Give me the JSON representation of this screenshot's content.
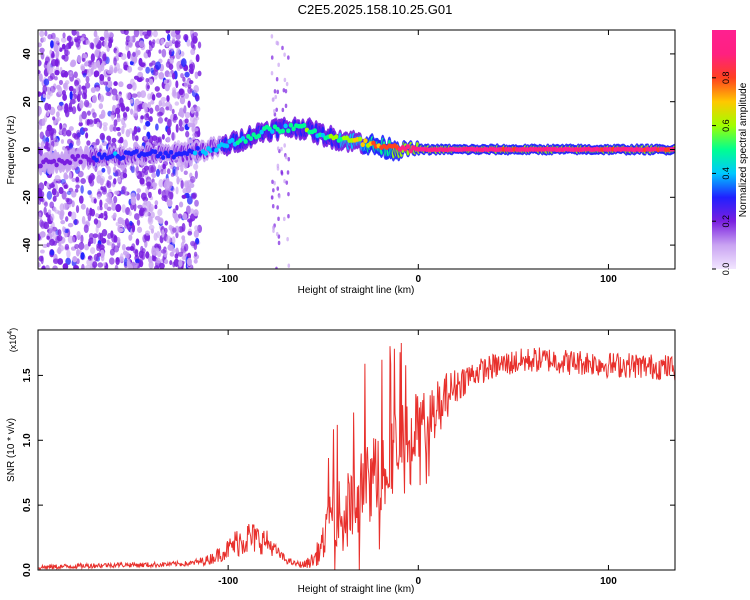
{
  "page": {
    "title": "C2E5.2025.158.10.25.G01"
  },
  "colors": {
    "snr_line": "#e8302c",
    "spectrogram_background": "#ffffff",
    "ridge": "#e62020"
  },
  "colorbar": {
    "label": "Normalized spectral amplitude",
    "ticks": [
      "0.0",
      "0.2",
      "0.4",
      "0.6",
      "0.8"
    ],
    "tick_values": [
      0.0,
      0.2,
      0.4,
      0.6,
      0.8
    ],
    "range": [
      0.0,
      1.0
    ],
    "stops": [
      "#f2e6ff",
      "#c9a3f2",
      "#7a1fe0",
      "#2020ff",
      "#00c8ff",
      "#00ff90",
      "#a0ff00",
      "#ffc800",
      "#ff4020",
      "#ff2080",
      "#ff2090"
    ]
  },
  "chart_data": [
    {
      "type": "heatmap",
      "id": "spectrogram",
      "title": "C2E5.2025.158.10.25.G01",
      "xlabel": "Height of straight line (km)",
      "ylabel": "Frequency (Hz)",
      "xlim": [
        -200,
        135
      ],
      "ylim": [
        -50,
        50
      ],
      "x_ticks": [
        -100,
        0,
        100
      ],
      "x_tick_labels": [
        "-100",
        "0",
        "100"
      ],
      "y_ticks": [
        -40,
        -20,
        0,
        20,
        40
      ],
      "y_tick_labels": [
        "-40",
        "-20",
        "0",
        "20",
        "40"
      ],
      "ridge_x": [
        -200,
        -190,
        -180,
        -170,
        -160,
        -150,
        -140,
        -130,
        -120,
        -110,
        -100,
        -90,
        -80,
        -70,
        -60,
        -50,
        -40,
        -30,
        -20,
        -10,
        0,
        20,
        40,
        60,
        80,
        100,
        120,
        135
      ],
      "ridge_freq": [
        -6,
        -5,
        -4,
        -3,
        -3,
        -2,
        -2,
        -2,
        -1,
        0,
        2,
        5,
        8,
        9,
        9,
        6,
        4,
        3,
        1,
        0,
        0,
        0,
        0,
        0,
        0,
        0,
        0,
        0
      ],
      "ridge_amplitude": [
        0.25,
        0.22,
        0.2,
        0.28,
        0.35,
        0.3,
        0.3,
        0.3,
        0.32,
        0.38,
        0.45,
        0.5,
        0.52,
        0.5,
        0.55,
        0.5,
        0.6,
        0.7,
        0.85,
        0.95,
        0.98,
        0.99,
        0.99,
        0.99,
        0.99,
        0.99,
        0.99,
        0.95
      ],
      "noise_region_x": [
        -200,
        -115
      ],
      "noise_amplitude": 0.22
    },
    {
      "type": "line",
      "id": "snr",
      "xlabel": "Height of straight line (km)",
      "ylabel": "SNR (10 * v/v)",
      "y_multiplier_base": "(x10",
      "y_multiplier_exponent": "4",
      "y_multiplier_close": ")",
      "xlim": [
        -200,
        135
      ],
      "ylim": [
        0.0,
        1.85
      ],
      "x_ticks": [
        -100,
        0,
        100
      ],
      "x_tick_labels": [
        "-100",
        "0",
        "100"
      ],
      "y_ticks": [
        0.0,
        0.5,
        1.0,
        1.5
      ],
      "y_tick_labels": [
        "0.0",
        "0.5",
        "1.0",
        "1.5"
      ],
      "series": [
        {
          "name": "SNR",
          "x": [
            -200,
            -180,
            -160,
            -140,
            -120,
            -110,
            -100,
            -95,
            -90,
            -85,
            -80,
            -75,
            -70,
            -65,
            -60,
            -55,
            -50,
            -45,
            -40,
            -35,
            -30,
            -25,
            -20,
            -15,
            -10,
            -5,
            0,
            5,
            10,
            15,
            20,
            25,
            30,
            40,
            50,
            60,
            70,
            80,
            90,
            100,
            110,
            120,
            135
          ],
          "y": [
            0.02,
            0.03,
            0.04,
            0.04,
            0.05,
            0.08,
            0.16,
            0.22,
            0.25,
            0.24,
            0.22,
            0.15,
            0.08,
            0.05,
            0.04,
            0.08,
            0.2,
            0.45,
            0.4,
            0.5,
            0.6,
            0.7,
            0.75,
            0.9,
            0.95,
            1.05,
            1.1,
            1.15,
            1.25,
            1.35,
            1.42,
            1.48,
            1.52,
            1.57,
            1.6,
            1.62,
            1.62,
            1.6,
            1.6,
            1.58,
            1.58,
            1.57,
            1.56
          ],
          "spread": [
            0.02,
            0.02,
            0.02,
            0.02,
            0.02,
            0.04,
            0.08,
            0.12,
            0.14,
            0.12,
            0.1,
            0.05,
            0.03,
            0.02,
            0.03,
            0.06,
            0.14,
            0.25,
            0.28,
            0.3,
            0.32,
            0.34,
            0.35,
            0.34,
            0.32,
            0.3,
            0.28,
            0.24,
            0.22,
            0.18,
            0.14,
            0.12,
            0.1,
            0.1,
            0.1,
            0.1,
            0.1,
            0.1,
            0.1,
            0.1,
            0.1,
            0.1,
            0.1
          ]
        }
      ]
    }
  ]
}
